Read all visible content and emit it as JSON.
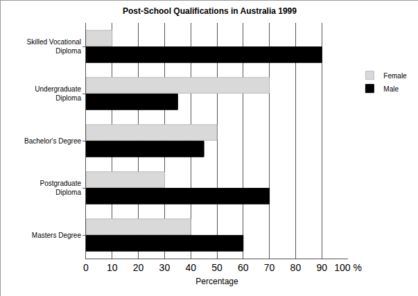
{
  "chart_data": {
    "type": "bar",
    "orientation": "horizontal",
    "title": "Post-School Qualifications in Australia 1999",
    "x_label": "Percentage",
    "categories": [
      "Skilled Vocational Diploma",
      "Undergraduate Diploma",
      "Bachelor's Degree",
      "Postgraduate Diploma",
      "Masters Degree"
    ],
    "series": [
      {
        "name": "Female",
        "color": "#d9d9d9",
        "values": [
          10,
          70,
          50,
          30,
          40
        ]
      },
      {
        "name": "Male",
        "color": "#000000",
        "values": [
          90,
          35,
          45,
          70,
          60
        ]
      }
    ],
    "xlim": [
      0,
      100
    ],
    "xticks": [
      0,
      10,
      20,
      30,
      40,
      50,
      60,
      70,
      80,
      90,
      {
        "value": 100,
        "label": "100 %"
      }
    ],
    "grid": true,
    "legend": "right"
  }
}
